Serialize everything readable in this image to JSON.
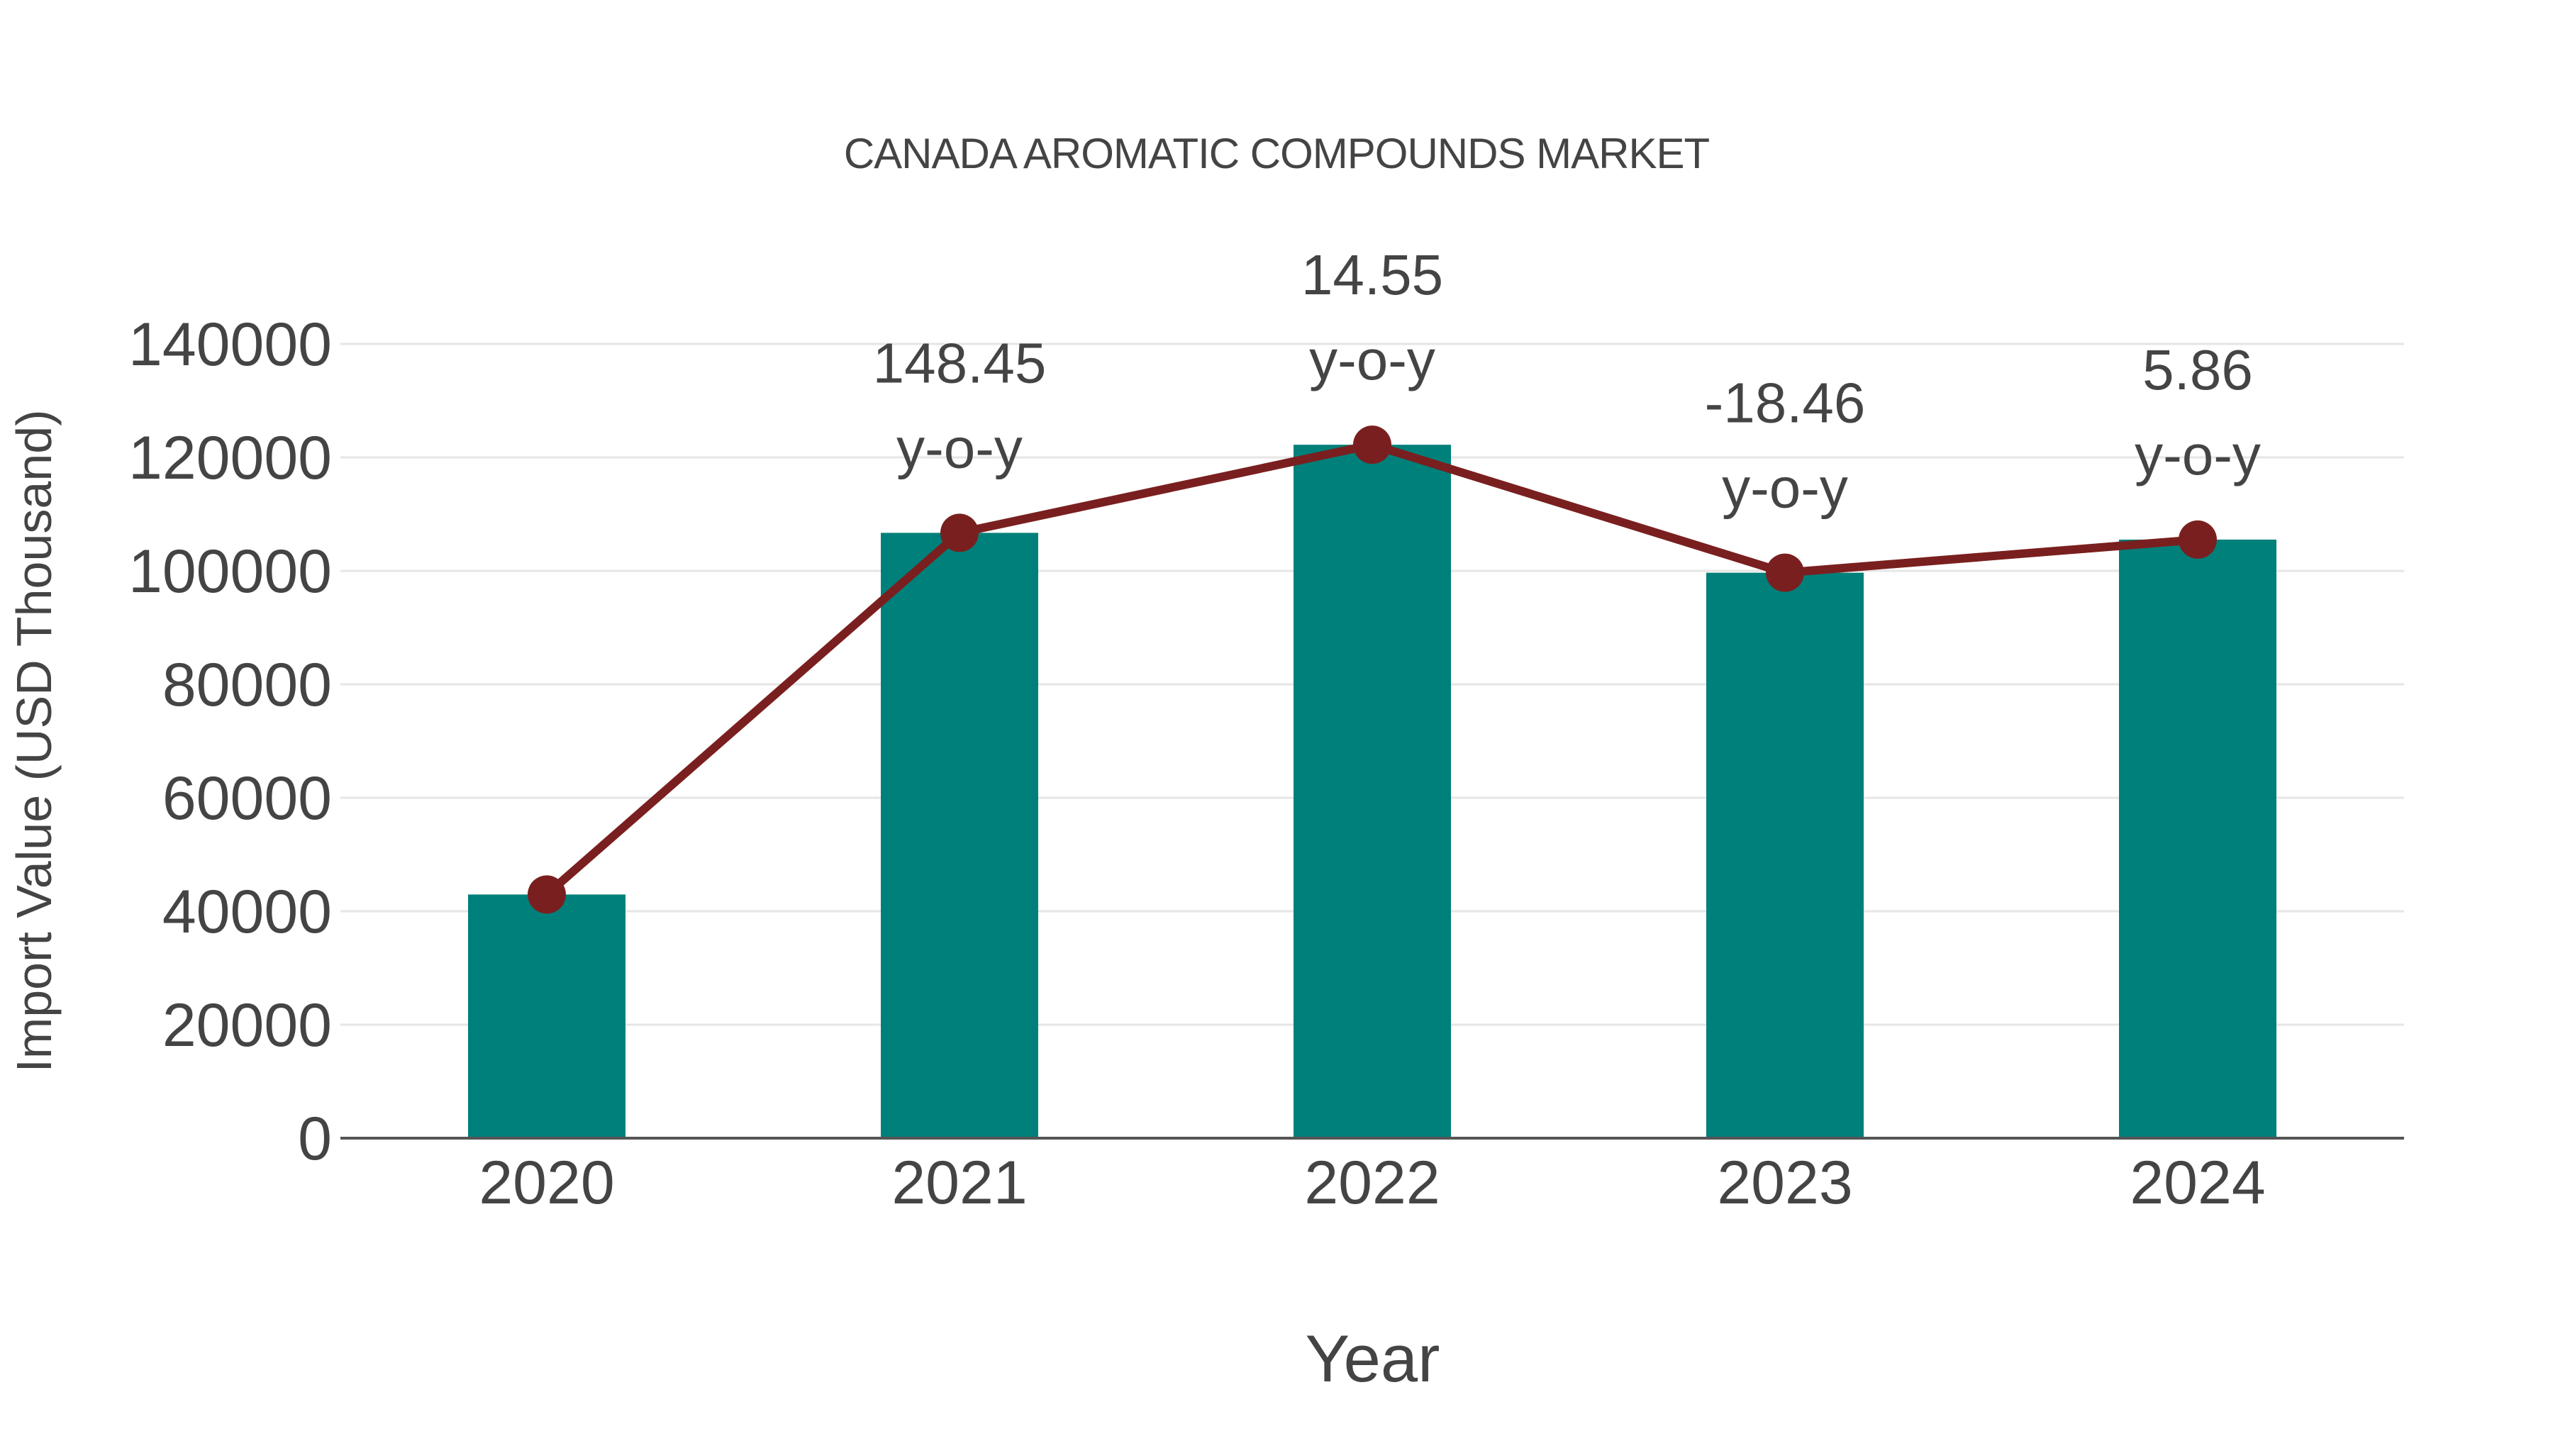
{
  "chart_data": {
    "type": "bar",
    "title": "CANADA AROMATIC COMPOUNDS MARKET",
    "xlabel": "Year",
    "ylabel": "Import Value (USD Thousand)",
    "categories": [
      "2020",
      "2021",
      "2022",
      "2023",
      "2024"
    ],
    "series": [
      {
        "name": "Import Value",
        "type": "bar",
        "color": "#00807A",
        "values": [
          42950,
          106700,
          122230,
          99670,
          105510
        ]
      },
      {
        "name": "Trend",
        "type": "line",
        "color": "#7A1F1F",
        "values": [
          42950,
          106700,
          122230,
          99670,
          105510
        ]
      }
    ],
    "annotations": [
      {
        "category": "2021",
        "value": "148.45",
        "suffix": "y-o-y"
      },
      {
        "category": "2022",
        "value": "14.55",
        "suffix": "y-o-y"
      },
      {
        "category": "2023",
        "value": "-18.46",
        "suffix": "y-o-y"
      },
      {
        "category": "2024",
        "value": "5.86",
        "suffix": "y-o-y"
      }
    ],
    "yticks": [
      0,
      20000,
      40000,
      60000,
      80000,
      100000,
      120000,
      140000
    ],
    "ylim": [
      0,
      140000
    ],
    "grid": true,
    "legend": "none"
  },
  "colors": {
    "bar": "#00807A",
    "line": "#7A1F1F",
    "text": "#444444",
    "grid": "#E6E6E6",
    "axis": "#555555"
  }
}
